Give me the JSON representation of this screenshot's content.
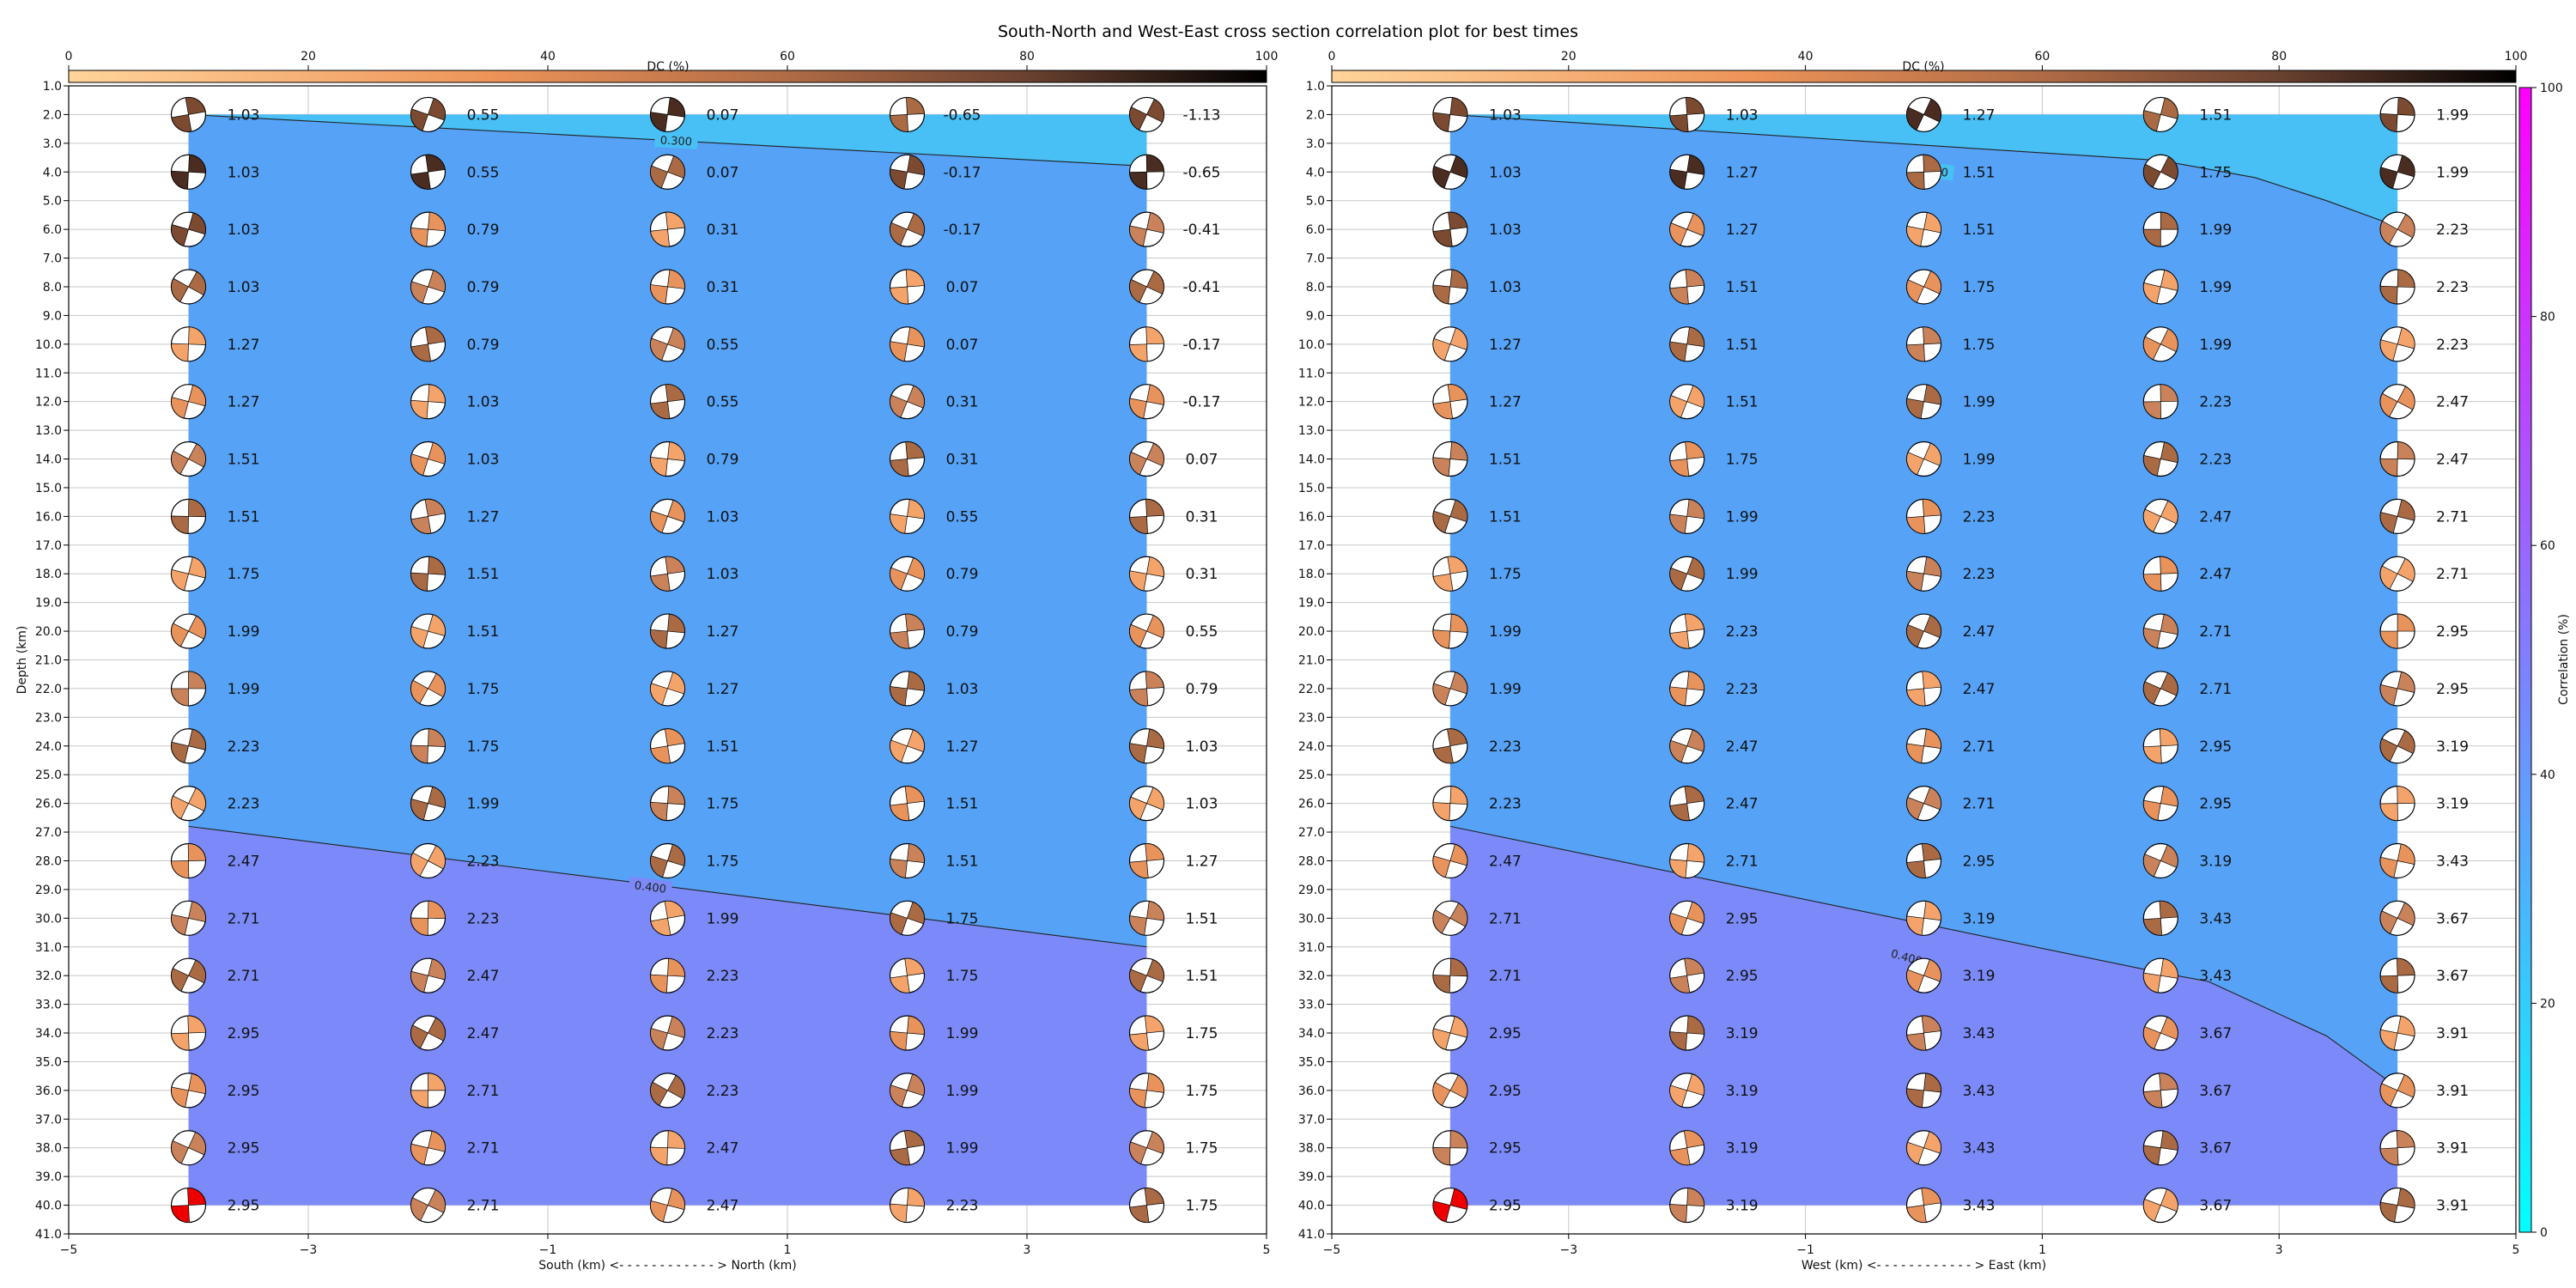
{
  "title": "South-North and West-East cross section correlation plot for best times",
  "dc_colorbar": {
    "label": "DC (%)",
    "ticks": [
      0,
      20,
      40,
      60,
      80,
      100
    ]
  },
  "corr_colorbar": {
    "label": "Correlation (%)",
    "ticks": [
      0,
      20,
      40,
      60,
      80,
      100
    ]
  },
  "chart_data": [
    {
      "type": "heatmap",
      "panel": "south-north",
      "xlabel": "South (km) <- - - - - - - - - - - - > North (km)",
      "ylabel": "Depth (km)",
      "xlim": [
        -5,
        5
      ],
      "ylim": [
        41,
        1
      ],
      "xticks": [
        -5,
        -3,
        -1,
        1,
        3,
        5
      ],
      "yticks": [
        "1.0",
        "2.0",
        "3.0",
        "4.0",
        "5.0",
        "6.0",
        "7.0",
        "8.0",
        "9.0",
        "10.0",
        "11.0",
        "12.0",
        "13.0",
        "14.0",
        "15.0",
        "16.0",
        "17.0",
        "18.0",
        "19.0",
        "20.0",
        "21.0",
        "22.0",
        "23.0",
        "24.0",
        "25.0",
        "26.0",
        "27.0",
        "28.0",
        "29.0",
        "30.0",
        "31.0",
        "32.0",
        "33.0",
        "34.0",
        "35.0",
        "36.0",
        "37.0",
        "38.0",
        "39.0",
        "40.0",
        "41.0"
      ],
      "grid": true,
      "x": [
        -4,
        -2,
        0,
        2,
        4
      ],
      "depths": [
        2,
        4,
        6,
        8,
        10,
        12,
        14,
        16,
        18,
        20,
        22,
        24,
        26,
        28,
        30,
        32,
        34,
        36,
        38,
        40
      ],
      "values": [
        [
          "1.03",
          "0.55",
          "0.07",
          "-0.65",
          "-1.13"
        ],
        [
          "1.03",
          "0.55",
          "0.07",
          "-0.17",
          "-0.65"
        ],
        [
          "1.03",
          "0.79",
          "0.31",
          "-0.17",
          "-0.41"
        ],
        [
          "1.03",
          "0.79",
          "0.31",
          "0.07",
          "-0.41"
        ],
        [
          "1.27",
          "0.79",
          "0.55",
          "0.07",
          "-0.17"
        ],
        [
          "1.27",
          "1.03",
          "0.55",
          "0.31",
          "-0.17"
        ],
        [
          "1.51",
          "1.03",
          "0.79",
          "0.31",
          "0.07"
        ],
        [
          "1.51",
          "1.27",
          "1.03",
          "0.55",
          "0.31"
        ],
        [
          "1.75",
          "1.51",
          "1.03",
          "0.79",
          "0.31"
        ],
        [
          "1.99",
          "1.51",
          "1.27",
          "0.79",
          "0.55"
        ],
        [
          "1.99",
          "1.75",
          "1.27",
          "1.03",
          "0.79"
        ],
        [
          "2.23",
          "1.75",
          "1.51",
          "1.27",
          "1.03"
        ],
        [
          "2.23",
          "1.99",
          "1.75",
          "1.51",
          "1.03"
        ],
        [
          "2.47",
          "2.23",
          "1.75",
          "1.51",
          "1.27"
        ],
        [
          "2.71",
          "2.23",
          "1.99",
          "1.75",
          "1.51"
        ],
        [
          "2.71",
          "2.47",
          "2.23",
          "1.75",
          "1.51"
        ],
        [
          "2.95",
          "2.47",
          "2.23",
          "1.99",
          "1.75"
        ],
        [
          "2.95",
          "2.71",
          "2.23",
          "1.99",
          "1.75"
        ],
        [
          "2.95",
          "2.71",
          "2.47",
          "1.99",
          "1.75"
        ],
        [
          "2.95",
          "2.71",
          "2.47",
          "2.23",
          "1.75"
        ]
      ],
      "contours": [
        {
          "label": "0.300",
          "color": "#48bff5",
          "points": [
            [
              -4,
              2
            ],
            [
              4,
              3.8
            ]
          ]
        },
        {
          "label": "0.400",
          "color": "#7b8af8",
          "points": [
            [
              -4,
              26.8
            ],
            [
              4,
              31
            ]
          ]
        }
      ],
      "fill_colors": {
        "above_0.300": "#48bff5",
        "0.300_0.400": "#56a2f7",
        "below_0.400": "#7b8af8"
      },
      "best_solution": {
        "x": -4,
        "depth": 40,
        "color": "#ee0000"
      }
    },
    {
      "type": "heatmap",
      "panel": "west-east",
      "xlabel": "West (km) <- - - - - - - - - - - - > East (km)",
      "ylabel": "",
      "xlim": [
        -5,
        5
      ],
      "ylim": [
        41,
        1
      ],
      "xticks": [
        -5,
        -3,
        -1,
        1,
        3,
        5
      ],
      "yticks": [
        "1.0",
        "2.0",
        "3.0",
        "4.0",
        "5.0",
        "6.0",
        "7.0",
        "8.0",
        "9.0",
        "10.0",
        "11.0",
        "12.0",
        "13.0",
        "14.0",
        "15.0",
        "16.0",
        "17.0",
        "18.0",
        "19.0",
        "20.0",
        "21.0",
        "22.0",
        "23.0",
        "24.0",
        "25.0",
        "26.0",
        "27.0",
        "28.0",
        "29.0",
        "30.0",
        "31.0",
        "32.0",
        "33.0",
        "34.0",
        "35.0",
        "36.0",
        "37.0",
        "38.0",
        "39.0",
        "40.0",
        "41.0"
      ],
      "grid": true,
      "x": [
        -4,
        -2,
        0,
        2,
        4
      ],
      "depths": [
        2,
        4,
        6,
        8,
        10,
        12,
        14,
        16,
        18,
        20,
        22,
        24,
        26,
        28,
        30,
        32,
        34,
        36,
        38,
        40
      ],
      "values": [
        [
          "1.03",
          "1.03",
          "1.27",
          "1.51",
          "1.99"
        ],
        [
          "1.03",
          "1.27",
          "1.51",
          "1.75",
          "1.99"
        ],
        [
          "1.03",
          "1.27",
          "1.51",
          "1.99",
          "2.23"
        ],
        [
          "1.03",
          "1.51",
          "1.75",
          "1.99",
          "2.23"
        ],
        [
          "1.27",
          "1.51",
          "1.75",
          "1.99",
          "2.23"
        ],
        [
          "1.27",
          "1.51",
          "1.99",
          "2.23",
          "2.47"
        ],
        [
          "1.51",
          "1.75",
          "1.99",
          "2.23",
          "2.47"
        ],
        [
          "1.51",
          "1.99",
          "2.23",
          "2.47",
          "2.71"
        ],
        [
          "1.75",
          "1.99",
          "2.23",
          "2.47",
          "2.71"
        ],
        [
          "1.99",
          "2.23",
          "2.47",
          "2.71",
          "2.95"
        ],
        [
          "1.99",
          "2.23",
          "2.47",
          "2.71",
          "2.95"
        ],
        [
          "2.23",
          "2.47",
          "2.71",
          "2.95",
          "3.19"
        ],
        [
          "2.23",
          "2.47",
          "2.71",
          "2.95",
          "3.19"
        ],
        [
          "2.47",
          "2.71",
          "2.95",
          "3.19",
          "3.43"
        ],
        [
          "2.71",
          "2.95",
          "3.19",
          "3.43",
          "3.67"
        ],
        [
          "2.71",
          "2.95",
          "3.19",
          "3.43",
          "3.67"
        ],
        [
          "2.95",
          "3.19",
          "3.43",
          "3.67",
          "3.91"
        ],
        [
          "2.95",
          "3.19",
          "3.43",
          "3.67",
          "3.91"
        ],
        [
          "2.95",
          "3.19",
          "3.43",
          "3.67",
          "3.91"
        ],
        [
          "2.95",
          "3.19",
          "3.43",
          "3.67",
          "3.91"
        ]
      ],
      "contours": [
        {
          "label": "0.300",
          "color": "#48bff5",
          "points": [
            [
              -4,
              2
            ],
            [
              2,
              3.6
            ],
            [
              2.8,
              4.2
            ],
            [
              3.4,
              5
            ],
            [
              4,
              5.9
            ]
          ]
        },
        {
          "label": "0.400",
          "color": "#7b8af8",
          "points": [
            [
              -4,
              26.8
            ],
            [
              2,
              31.9
            ],
            [
              2.4,
              32.2
            ],
            [
              3.4,
              34.1
            ],
            [
              4,
              35.9
            ]
          ]
        }
      ],
      "fill_colors": {
        "above_0.300": "#48bff5",
        "0.300_0.400": "#56a2f7",
        "below_0.400": "#7b8af8"
      },
      "best_solution": {
        "x": -4,
        "depth": 40,
        "color": "#ee0000"
      }
    }
  ]
}
